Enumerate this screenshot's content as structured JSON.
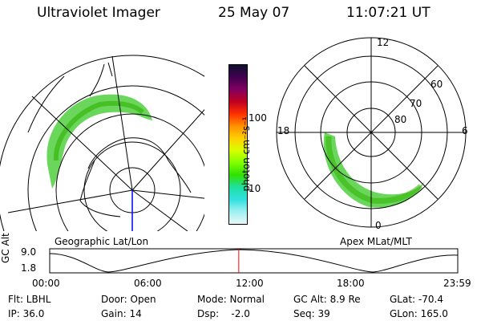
{
  "header": {
    "instrument": "Ultraviolet Imager",
    "date": "25 May 07",
    "time": "11:07:21 UT"
  },
  "left_panel": {
    "label": "Geographic Lat/Lon"
  },
  "right_panel": {
    "label": "Apex MLat/MLT",
    "mlt_labels": [
      "12",
      "18",
      "6",
      "0"
    ],
    "lat_labels": [
      "60",
      "70",
      "80"
    ]
  },
  "colorbar": {
    "unit": "photon cm⁻²s⁻¹",
    "ticks": [
      "100",
      "10"
    ],
    "colors": [
      "#101030",
      "#400050",
      "#800060",
      "#c00020",
      "#ff3000",
      "#ff9000",
      "#ffd000",
      "#d8ff00",
      "#80ff00",
      "#30e000",
      "#20e0a0",
      "#30e0e0",
      "#a0f0f0",
      "#e8f8f8"
    ]
  },
  "timeline": {
    "axis_label": "GC Alt",
    "ymax": "9.0",
    "ymin": "1.8",
    "ticks": [
      "00:00",
      "06:00",
      "12:00",
      "18:00",
      "23:59"
    ],
    "current_hour": 11.12
  },
  "info": {
    "flt": "Flt: LBHL",
    "ip": "IP: 36.0",
    "door": "Door: Open",
    "gain": "Gain: 14",
    "mode": "Mode: Normal",
    "dsp": "Dsp:    -2.0",
    "gc_alt": "GC Alt: 8.9 Re",
    "seq": "Seq: 39",
    "glat": "GLat: -70.4",
    "glon": "GLon: 165.0"
  },
  "colors": {
    "marker": "#ff0000",
    "meridian": "#0000ff"
  }
}
